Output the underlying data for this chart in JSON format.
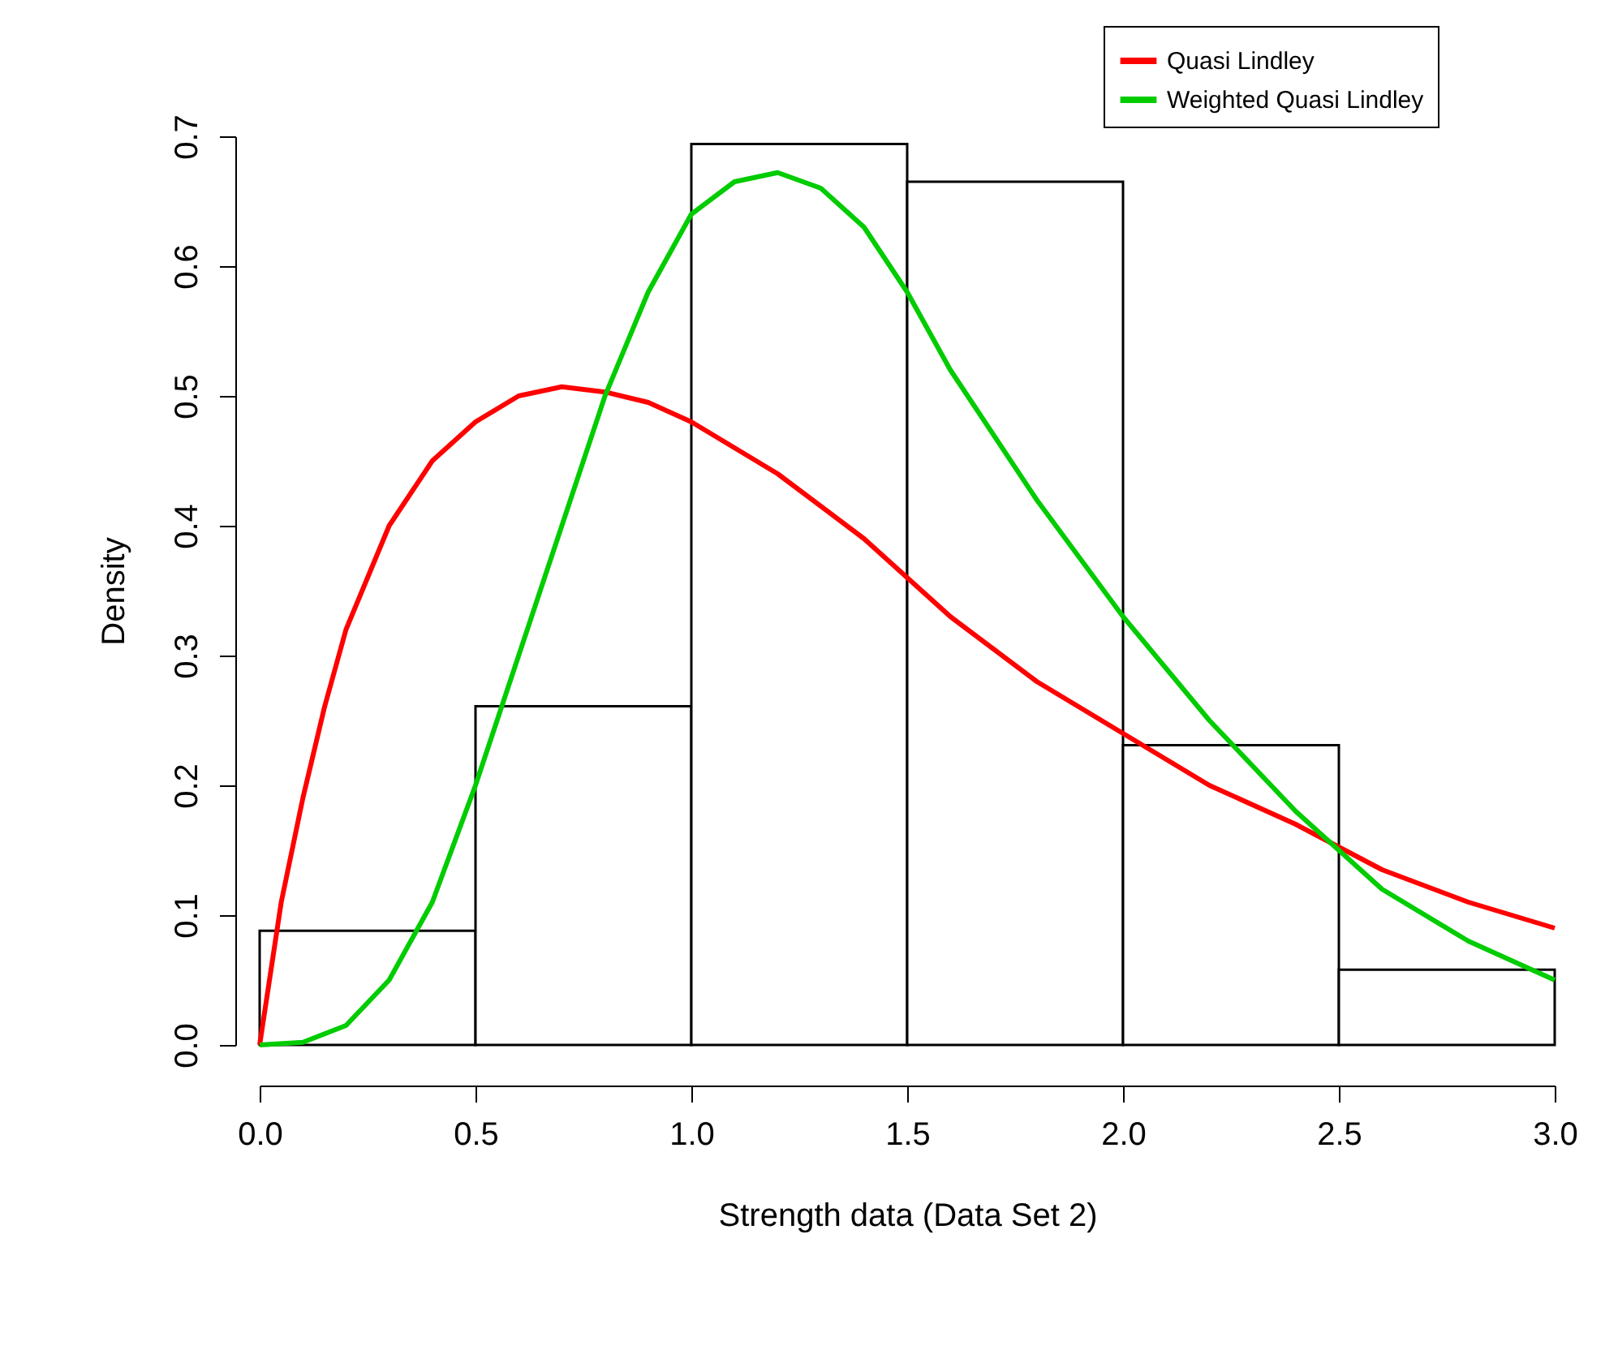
{
  "chart_data": {
    "type": "histogram",
    "xlabel": "Strength data (Data Set 2)",
    "ylabel": "Density",
    "bins": [
      0,
      0.5,
      1,
      1.5,
      2,
      2.5,
      3
    ],
    "values": [
      0.088,
      0.261,
      0.694,
      0.665,
      0.231,
      0.058
    ],
    "xlim": [
      0,
      3
    ],
    "xticks": [
      {
        "value": 0,
        "label": "0.0"
      },
      0.5,
      {
        "value": 1,
        "label": "1.0"
      },
      1.5,
      {
        "value": 2,
        "label": "2.0"
      },
      2.5,
      {
        "value": 3,
        "label": "3.0"
      }
    ],
    "ylim": [
      0,
      0.7
    ],
    "yticks": [
      {
        "value": 0,
        "label": "0.0"
      },
      0.1,
      0.2,
      0.3,
      0.4,
      0.5,
      0.6,
      0.7
    ],
    "grid": false,
    "legend": "top right",
    "series": [
      {
        "name": "Quasi Lindley",
        "type": "line",
        "color": "#ff0000",
        "x": [
          0,
          0.05,
          0.1,
          0.15,
          0.2,
          0.3,
          0.4,
          0.5,
          0.6,
          0.7,
          0.8,
          0.9,
          1,
          1.2,
          1.4,
          1.6,
          1.8,
          2,
          2.2,
          2.4,
          2.6,
          2.8,
          3
        ],
        "values": [
          0,
          0.11,
          0.19,
          0.26,
          0.32,
          0.4,
          0.45,
          0.48,
          0.5,
          0.507,
          0.503,
          0.495,
          0.48,
          0.44,
          0.39,
          0.33,
          0.28,
          0.24,
          0.2,
          0.17,
          0.135,
          0.11,
          0.09
        ]
      },
      {
        "name": "Weighted Quasi Lindley",
        "type": "line",
        "color": "#00cc00",
        "x": [
          0,
          0.1,
          0.2,
          0.3,
          0.4,
          0.5,
          0.6,
          0.7,
          0.8,
          0.9,
          1,
          1.1,
          1.2,
          1.3,
          1.4,
          1.5,
          1.6,
          1.8,
          2,
          2.2,
          2.4,
          2.6,
          2.8,
          3
        ],
        "values": [
          0,
          0.002,
          0.015,
          0.05,
          0.11,
          0.2,
          0.3,
          0.4,
          0.5,
          0.58,
          0.64,
          0.665,
          0.672,
          0.66,
          0.63,
          0.58,
          0.52,
          0.42,
          0.33,
          0.25,
          0.18,
          0.12,
          0.08,
          0.05
        ]
      }
    ]
  }
}
